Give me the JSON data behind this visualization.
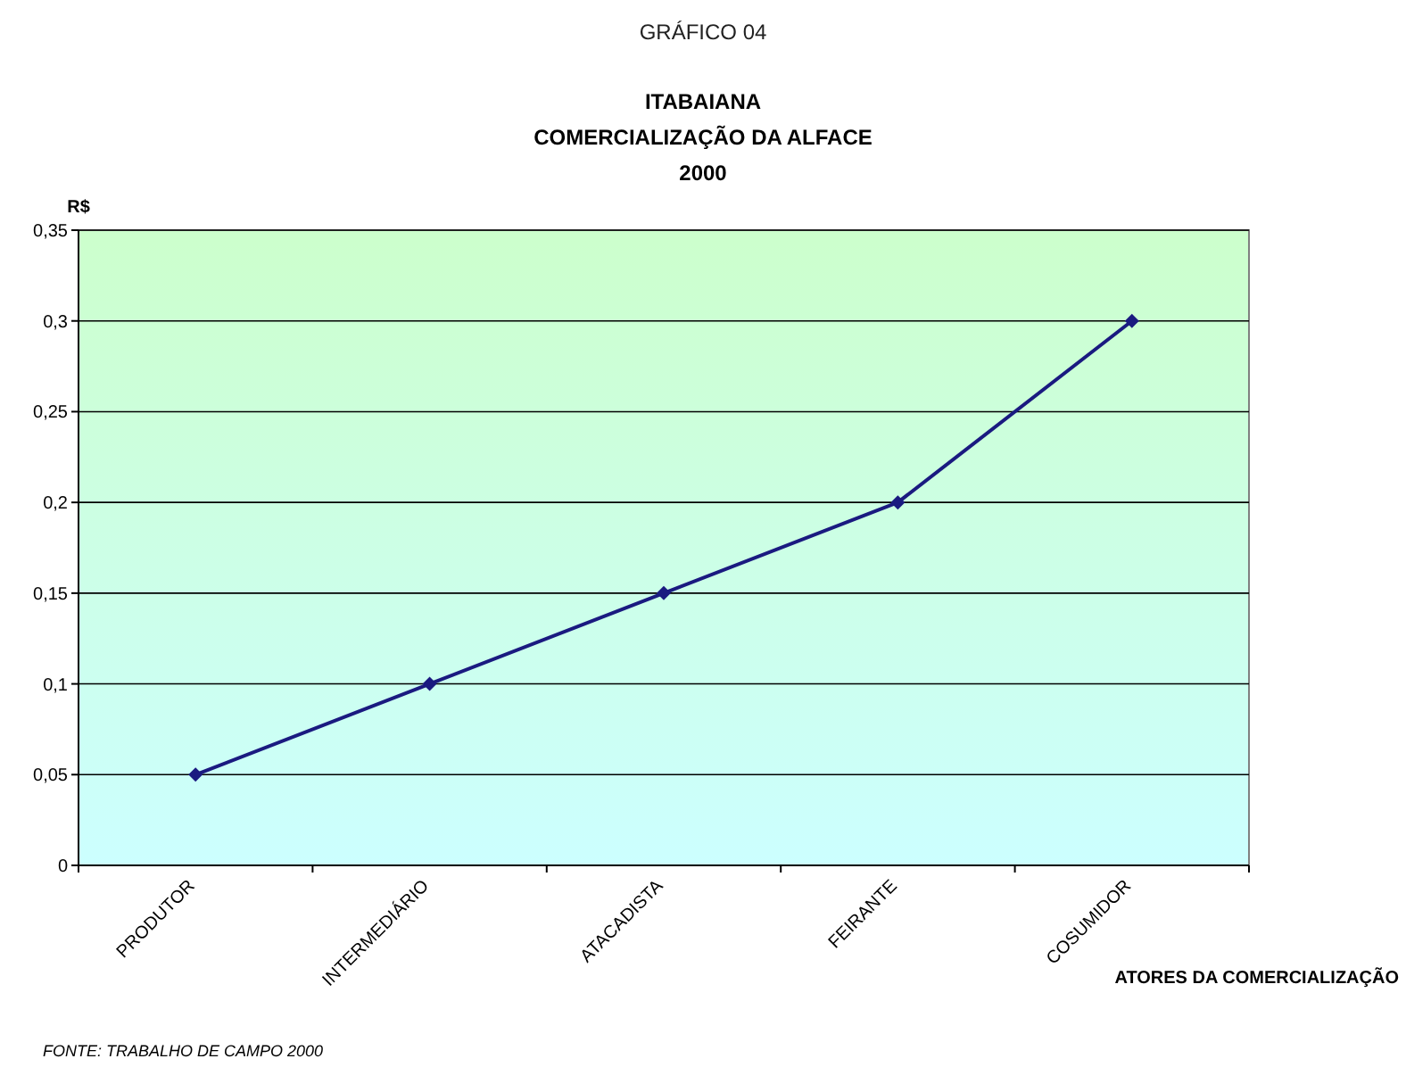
{
  "chart_data": {
    "type": "line",
    "title": "GRÁFICO 04",
    "subtitle": "ITABAIANA\nCOMERCIALIZAÇÃO DA ALFACE\n2000",
    "ylabel": "R$",
    "xlabel": "ATORES DA COMERCIALIZAÇÃO",
    "annotations": [
      "FONTE: TRABALHO DE CAMPO 2000"
    ],
    "categories": [
      "PRODUTOR",
      "INTERMEDIÁRIO",
      "ATACADISTA",
      "FEIRANTE",
      "COSUMIDOR"
    ],
    "series": [
      {
        "color": "#1a1a80",
        "values": [
          0.05,
          0.1,
          0.15,
          0.2,
          0.3
        ]
      }
    ],
    "ylim": [
      0,
      0.35
    ],
    "yticks": [
      {
        "value": 0,
        "label": "0"
      },
      {
        "value": 0.05,
        "label": "0,05"
      },
      {
        "value": 0.1,
        "label": "0,1"
      },
      {
        "value": 0.15,
        "label": "0,15"
      },
      {
        "value": 0.2,
        "label": "0,2"
      },
      {
        "value": 0.25,
        "label": "0,25"
      },
      {
        "value": 0.3,
        "label": "0,3"
      },
      {
        "value": 0.35,
        "label": "0,35"
      }
    ],
    "grid": "y",
    "marker": "diamond",
    "line_style": "solid"
  }
}
